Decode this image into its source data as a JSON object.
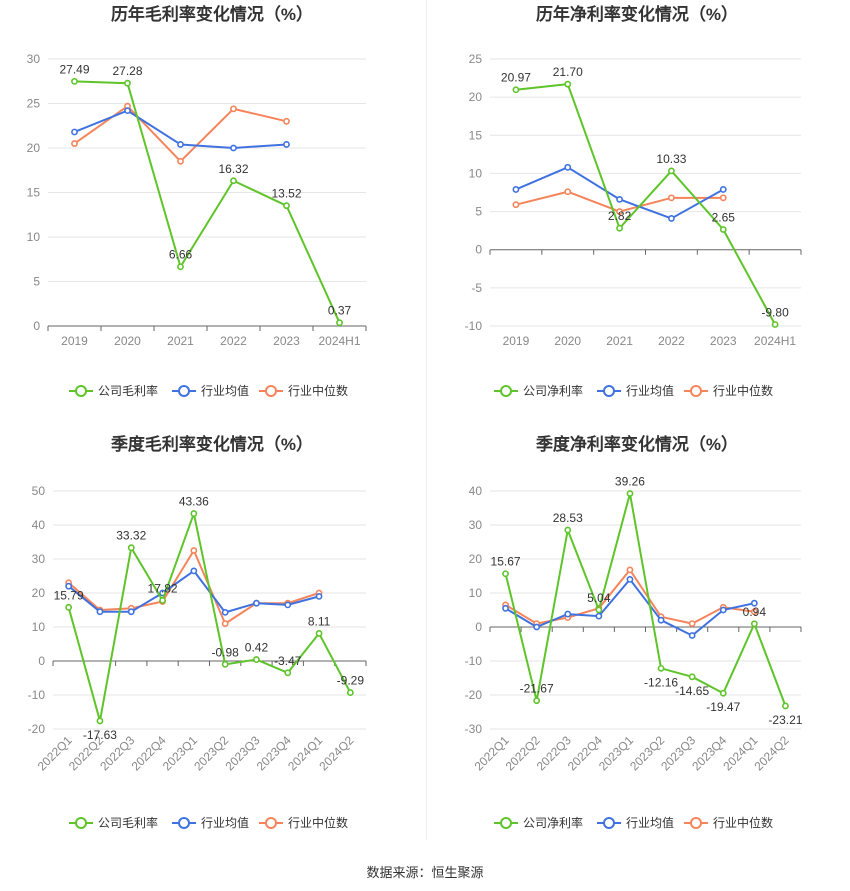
{
  "colors": {
    "company": "#5ec42a",
    "mean": "#3f72e0",
    "median": "#f5845a",
    "axis": "#888888",
    "grid": "#e6e6e6",
    "text": "#333333"
  },
  "legend_labels": {
    "mean": "行业均值",
    "median": "行业中位数"
  },
  "footer": {
    "source": "数据来源：恒生聚源"
  },
  "chart_data": [
    {
      "type": "line",
      "title": "历年毛利率变化情况（%）",
      "categories": [
        "2019",
        "2020",
        "2021",
        "2022",
        "2023",
        "2024H1"
      ],
      "ylim": [
        0,
        30
      ],
      "yticks": [
        0,
        5,
        10,
        15,
        20,
        25,
        30
      ],
      "grid": true,
      "legend_position": "bottom",
      "x_rotated": false,
      "series": [
        {
          "name": "公司毛利率",
          "key": "company",
          "values": [
            27.49,
            27.28,
            6.66,
            16.32,
            13.52,
            0.37
          ],
          "labels": [
            "27.49",
            "27.28",
            "6.66",
            "16.32",
            "13.52",
            "0.37"
          ]
        },
        {
          "name": "行业均值",
          "key": "mean",
          "values": [
            21.8,
            24.2,
            20.4,
            20.0,
            20.4,
            null
          ]
        },
        {
          "name": "行业中位数",
          "key": "median",
          "values": [
            20.5,
            24.7,
            18.5,
            24.4,
            23.0,
            null
          ]
        }
      ]
    },
    {
      "type": "line",
      "title": "历年净利率变化情况（%）",
      "categories": [
        "2019",
        "2020",
        "2021",
        "2022",
        "2023",
        "2024H1"
      ],
      "ylim": [
        -10,
        25
      ],
      "yticks": [
        -10,
        -5,
        0,
        5,
        10,
        15,
        20,
        25
      ],
      "grid": true,
      "legend_position": "bottom",
      "x_rotated": false,
      "series": [
        {
          "name": "公司净利率",
          "key": "company",
          "values": [
            20.97,
            21.7,
            2.82,
            10.33,
            2.65,
            -9.8
          ],
          "labels": [
            "20.97",
            "21.70",
            "2.82",
            "10.33",
            "2.65",
            "-9.80"
          ]
        },
        {
          "name": "行业均值",
          "key": "mean",
          "values": [
            7.9,
            10.8,
            6.6,
            4.1,
            7.9,
            null
          ]
        },
        {
          "name": "行业中位数",
          "key": "median",
          "values": [
            5.9,
            7.6,
            5.0,
            6.8,
            6.8,
            null
          ]
        }
      ]
    },
    {
      "type": "line",
      "title": "季度毛利率变化情况（%）",
      "categories": [
        "2022Q1",
        "2022Q2",
        "2022Q3",
        "2022Q4",
        "2023Q1",
        "2023Q2",
        "2023Q3",
        "2023Q4",
        "2024Q1",
        "2024Q2"
      ],
      "ylim": [
        -20,
        50
      ],
      "yticks": [
        -20,
        -10,
        0,
        10,
        20,
        30,
        40,
        50
      ],
      "grid": true,
      "legend_position": "bottom",
      "x_rotated": true,
      "series": [
        {
          "name": "公司毛利率",
          "key": "company",
          "values": [
            15.79,
            -17.63,
            33.32,
            17.82,
            43.36,
            -0.98,
            0.42,
            -3.47,
            8.11,
            -9.29
          ],
          "labels": [
            "15.79",
            "-17.63",
            "33.32",
            "17.82",
            "43.36",
            "-0.98",
            "0.42",
            "-3.47",
            "8.11",
            "-9.29"
          ]
        },
        {
          "name": "行业均值",
          "key": "mean",
          "values": [
            22.0,
            14.5,
            14.5,
            20.0,
            26.5,
            14.3,
            17.0,
            16.5,
            19.0,
            null
          ]
        },
        {
          "name": "行业中位数",
          "key": "median",
          "values": [
            23.0,
            15.0,
            15.5,
            17.5,
            32.5,
            11.0,
            17.0,
            17.0,
            20.0,
            null
          ]
        }
      ]
    },
    {
      "type": "line",
      "title": "季度净利率变化情况（%）",
      "categories": [
        "2022Q1",
        "2022Q2",
        "2022Q3",
        "2022Q4",
        "2023Q1",
        "2023Q2",
        "2023Q3",
        "2023Q4",
        "2024Q1",
        "2024Q2"
      ],
      "ylim": [
        -30,
        40
      ],
      "yticks": [
        -30,
        -20,
        -10,
        0,
        10,
        20,
        30,
        40
      ],
      "grid": true,
      "legend_position": "bottom",
      "x_rotated": true,
      "series": [
        {
          "name": "公司净利率",
          "key": "company",
          "values": [
            15.67,
            -21.67,
            28.53,
            5.04,
            39.26,
            -12.16,
            -14.65,
            -19.47,
            0.94,
            -23.21
          ],
          "labels": [
            "15.67",
            "-21.67",
            "28.53",
            "5.04",
            "39.26",
            "-12.16",
            "-14.65",
            "-19.47",
            "0.94",
            "-23.21"
          ]
        },
        {
          "name": "行业均值",
          "key": "mean",
          "values": [
            5.5,
            0.0,
            3.8,
            3.2,
            14.0,
            2.0,
            -2.5,
            5.0,
            7.0,
            null
          ]
        },
        {
          "name": "行业中位数",
          "key": "median",
          "values": [
            6.5,
            1.0,
            2.8,
            5.5,
            16.8,
            3.0,
            1.0,
            5.8,
            4.5,
            null
          ]
        }
      ]
    }
  ]
}
